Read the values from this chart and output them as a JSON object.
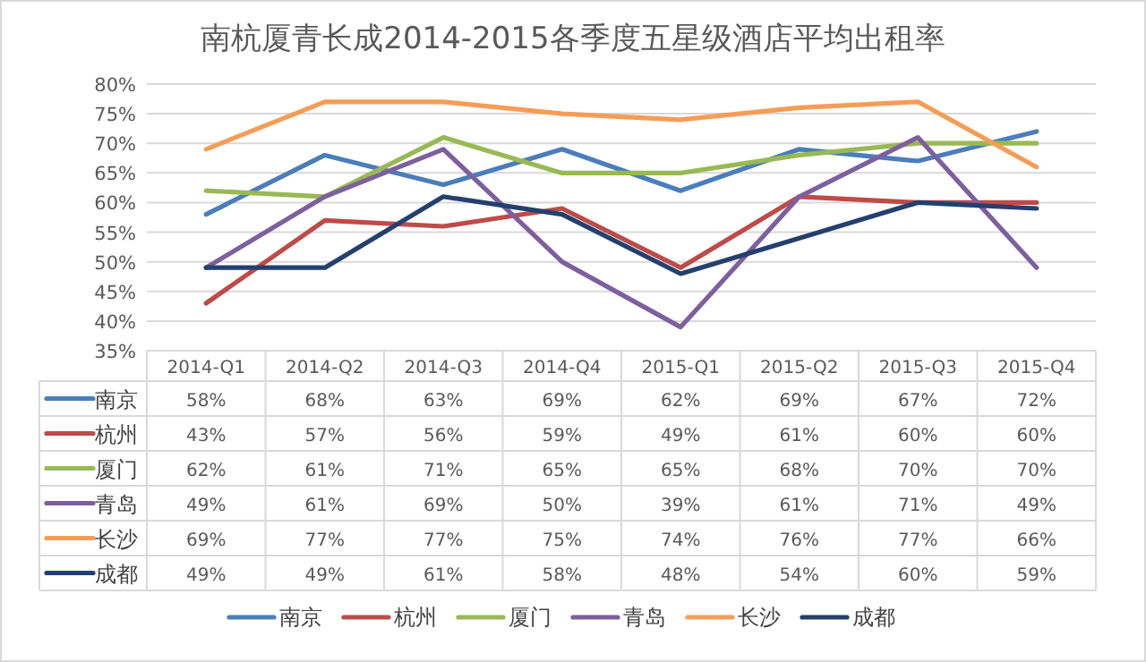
{
  "chart_data": {
    "type": "line",
    "title": "南杭厦青长成2014-2015各季度五星级酒店平均出租率",
    "categories": [
      "2014-Q1",
      "2014-Q2",
      "2014-Q3",
      "2014-Q4",
      "2015-Q1",
      "2015-Q2",
      "2015-Q3",
      "2015-Q4"
    ],
    "series": [
      {
        "name": "南京",
        "color": "#4a7ebb",
        "values": [
          58,
          68,
          63,
          69,
          62,
          69,
          67,
          72
        ],
        "value_labels": [
          "58%",
          "68%",
          "63%",
          "69%",
          "62%",
          "69%",
          "67%",
          "72%"
        ]
      },
      {
        "name": "杭州",
        "color": "#be4b48",
        "values": [
          43,
          57,
          56,
          59,
          49,
          61,
          60,
          60
        ],
        "value_labels": [
          "43%",
          "57%",
          "56%",
          "59%",
          "49%",
          "61%",
          "60%",
          "60%"
        ]
      },
      {
        "name": "厦门",
        "color": "#98b954",
        "values": [
          62,
          61,
          71,
          65,
          65,
          68,
          70,
          70
        ],
        "value_labels": [
          "62%",
          "61%",
          "71%",
          "65%",
          "65%",
          "68%",
          "70%",
          "70%"
        ]
      },
      {
        "name": "青岛",
        "color": "#7d5fa0",
        "values": [
          49,
          61,
          69,
          50,
          39,
          61,
          71,
          49
        ],
        "value_labels": [
          "49%",
          "61%",
          "69%",
          "50%",
          "39%",
          "61%",
          "71%",
          "49%"
        ]
      },
      {
        "name": "长沙",
        "color": "#f59d56",
        "values": [
          69,
          77,
          77,
          75,
          74,
          76,
          77,
          66
        ],
        "value_labels": [
          "69%",
          "77%",
          "77%",
          "75%",
          "74%",
          "76%",
          "77%",
          "66%"
        ]
      },
      {
        "name": "成都",
        "color": "#23406e",
        "values": [
          49,
          49,
          61,
          58,
          48,
          54,
          60,
          59
        ],
        "value_labels": [
          "49%",
          "49%",
          "61%",
          "58%",
          "48%",
          "54%",
          "60%",
          "59%"
        ]
      }
    ],
    "ylim": [
      35,
      80
    ],
    "yticks": [
      {
        "value": 35,
        "label": "35%"
      },
      {
        "value": 40,
        "label": "40%"
      },
      {
        "value": 45,
        "label": "45%"
      },
      {
        "value": 50,
        "label": "50%"
      },
      {
        "value": 55,
        "label": "55%"
      },
      {
        "value": 60,
        "label": "60%"
      },
      {
        "value": 65,
        "label": "65%"
      },
      {
        "value": 70,
        "label": "70%"
      },
      {
        "value": 75,
        "label": "75%"
      },
      {
        "value": 80,
        "label": "80%"
      }
    ],
    "grid": "y",
    "legend": "bottom",
    "marker": "none",
    "line_style": "solid"
  }
}
